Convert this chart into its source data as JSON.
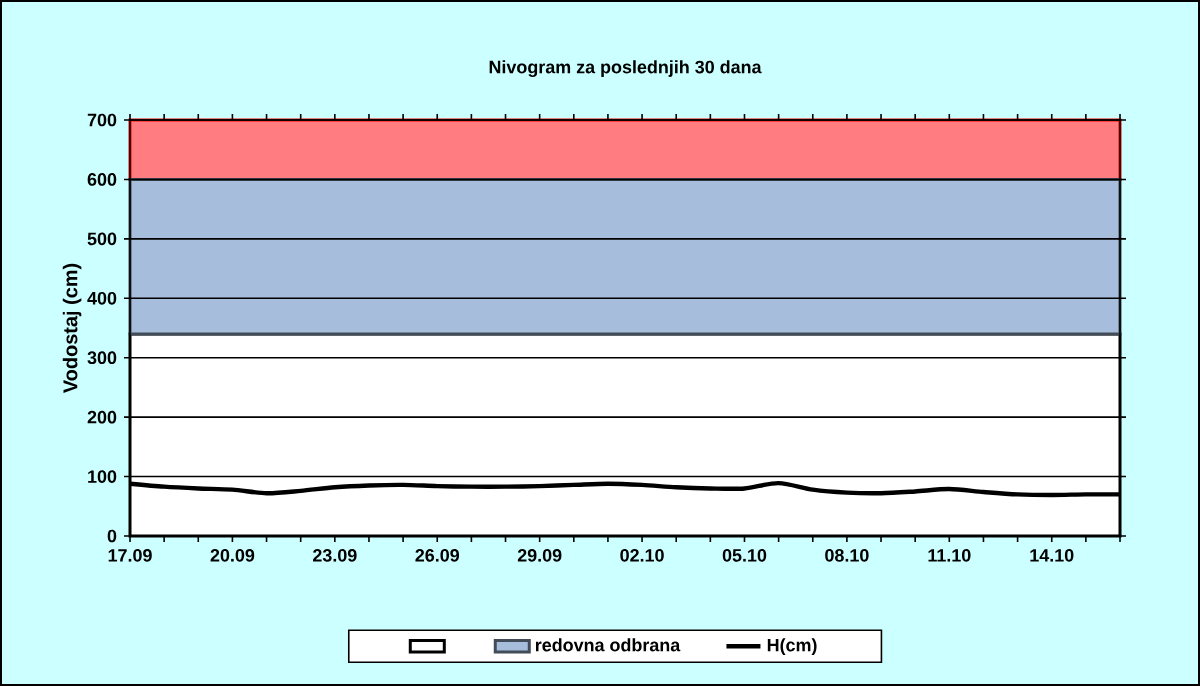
{
  "chart_data": {
    "type": "area",
    "title": "Nivogram za poslednjih 30 dana",
    "ylabel": "Vodostaj (cm)",
    "categories": [
      "17.09",
      null,
      null,
      "20.09",
      null,
      null,
      "23.09",
      null,
      null,
      "26.09",
      null,
      null,
      "29.09",
      null,
      null,
      "02.10",
      null,
      null,
      "05.10",
      null,
      null,
      "08.10",
      null,
      null,
      "11.10",
      null,
      null,
      "14.10",
      null,
      null
    ],
    "stacked": true,
    "series": [
      {
        "color": "#ffffff",
        "values": [
          340,
          340,
          340,
          340,
          340,
          340,
          340,
          340,
          340,
          340,
          340,
          340,
          340,
          340,
          340,
          340,
          340,
          340,
          340,
          340,
          340,
          340,
          340,
          340,
          340,
          340,
          340,
          340,
          340,
          340
        ]
      },
      {
        "name": "redovna odbrana",
        "color": "#a6bddb",
        "values": [
          260,
          260,
          260,
          260,
          260,
          260,
          260,
          260,
          260,
          260,
          260,
          260,
          260,
          260,
          260,
          260,
          260,
          260,
          260,
          260,
          260,
          260,
          260,
          260,
          260,
          260,
          260,
          260,
          260,
          260
        ]
      },
      {
        "name": "H(cm)",
        "type": "line",
        "color": "#000000",
        "values": [
          88,
          83,
          80,
          78,
          72,
          76,
          82,
          85,
          86,
          84,
          83,
          83,
          84,
          86,
          88,
          86,
          82,
          80,
          80,
          89,
          78,
          73,
          72,
          75,
          79,
          74,
          70,
          69,
          70,
          70
        ]
      }
    ],
    "bands": [
      {
        "axis": "y",
        "from": 600,
        "to": 700,
        "color": "#ff7c80"
      }
    ],
    "ylim": [
      0,
      700
    ],
    "yticks": [
      0,
      100,
      200,
      300,
      400,
      500,
      600,
      700
    ],
    "grid": "y",
    "legend": "bottom"
  }
}
